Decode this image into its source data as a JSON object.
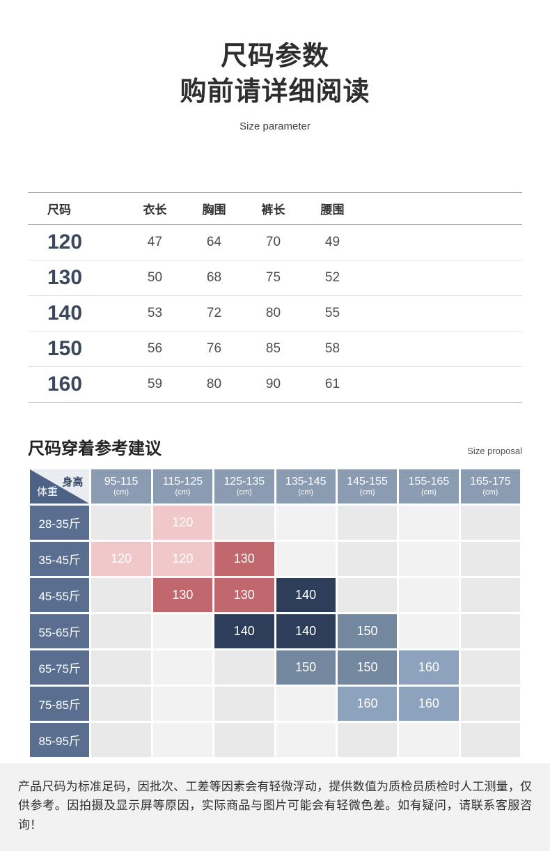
{
  "header": {
    "title_line1": "尺码参数",
    "title_line2": "购前请详细阅读",
    "subtitle_en": "Size parameter"
  },
  "size_table": {
    "columns": [
      "尺码",
      "衣长",
      "胸围",
      "裤长",
      "腰围"
    ],
    "rows": [
      {
        "size": "120",
        "values": [
          "47",
          "64",
          "70",
          "49"
        ]
      },
      {
        "size": "130",
        "values": [
          "50",
          "68",
          "75",
          "52"
        ]
      },
      {
        "size": "140",
        "values": [
          "53",
          "72",
          "80",
          "55"
        ]
      },
      {
        "size": "150",
        "values": [
          "56",
          "76",
          "85",
          "58"
        ]
      },
      {
        "size": "160",
        "values": [
          "59",
          "80",
          "90",
          "61"
        ]
      }
    ]
  },
  "proposal": {
    "title": "尺码穿着参考建议",
    "subtitle_en": "Size proposal",
    "corner": {
      "top_right": "身高",
      "bottom_left": "体重"
    },
    "height_columns": [
      {
        "range": "95-115",
        "unit": "(cm)"
      },
      {
        "range": "115-125",
        "unit": "(cm)"
      },
      {
        "range": "125-135",
        "unit": "(cm)"
      },
      {
        "range": "135-145",
        "unit": "(cm)"
      },
      {
        "range": "145-155",
        "unit": "(cm)"
      },
      {
        "range": "155-165",
        "unit": "(cm)"
      },
      {
        "range": "165-175",
        "unit": "(cm)"
      }
    ],
    "weight_rows": [
      "28-35斤",
      "35-45斤",
      "45-55斤",
      "55-65斤",
      "65-75斤",
      "75-85斤",
      "85-95斤"
    ],
    "colors": {
      "pink": "#f1c8ca",
      "rose": "#c1686f",
      "navy": "#2d3d5a",
      "slate": "#73879e",
      "slate_light": "#8ca2bd",
      "header_bg": "#8a9bb2",
      "weight_bg": "#5a6f90",
      "corner_dark": "#4d6285",
      "corner_light": "#e9ecf1",
      "cell_even": "#e9e9e9",
      "cell_odd": "#f2f2f2"
    },
    "cells": [
      [
        null,
        {
          "v": "120",
          "c": "pink"
        },
        null,
        null,
        null,
        null,
        null
      ],
      [
        {
          "v": "120",
          "c": "pink"
        },
        {
          "v": "120",
          "c": "pink"
        },
        {
          "v": "130",
          "c": "rose"
        },
        null,
        null,
        null,
        null
      ],
      [
        null,
        {
          "v": "130",
          "c": "rose"
        },
        {
          "v": "130",
          "c": "rose"
        },
        {
          "v": "140",
          "c": "navy"
        },
        null,
        null,
        null
      ],
      [
        null,
        null,
        {
          "v": "140",
          "c": "navy"
        },
        {
          "v": "140",
          "c": "navy"
        },
        {
          "v": "150",
          "c": "slate"
        },
        null,
        null
      ],
      [
        null,
        null,
        null,
        {
          "v": "150",
          "c": "slate"
        },
        {
          "v": "150",
          "c": "slate"
        },
        {
          "v": "160",
          "c": "slate_light"
        },
        null
      ],
      [
        null,
        null,
        null,
        null,
        {
          "v": "160",
          "c": "slate_light"
        },
        {
          "v": "160",
          "c": "slate_light"
        },
        null
      ],
      [
        null,
        null,
        null,
        null,
        null,
        null,
        null
      ]
    ]
  },
  "disclaimer": "产品尺码为标准足码，因批次、工差等因素会有轻微浮动，提供数值为质检员质检时人工测量，仅供参考。因拍摄及显示屏等原因，实际商品与图片可能会有轻微色差。如有疑问，请联系客服咨询！"
}
